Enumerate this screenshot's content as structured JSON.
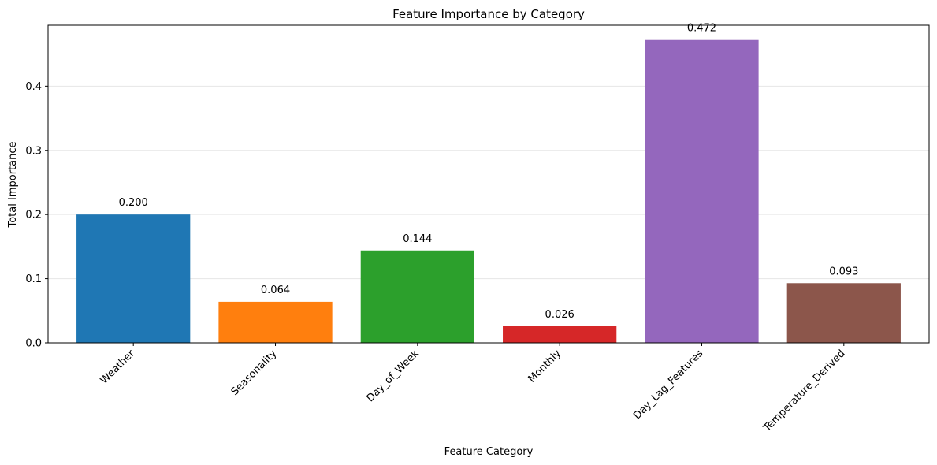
{
  "chart_data": {
    "type": "bar",
    "title": "Feature Importance by Category",
    "xlabel": "Feature Category",
    "ylabel": "Total Importance",
    "categories": [
      "Weather",
      "Seasonality",
      "Day_of_Week",
      "Monthly",
      "Day_Lag_Features",
      "Temperature_Derived"
    ],
    "values": [
      0.2,
      0.064,
      0.144,
      0.026,
      0.472,
      0.093
    ],
    "value_labels": [
      "0.200",
      "0.064",
      "0.144",
      "0.026",
      "0.472",
      "0.093"
    ],
    "colors": [
      "#1f77b4",
      "#ff7f0e",
      "#2ca02c",
      "#d62728",
      "#9467bd",
      "#8c564b"
    ],
    "ylim": [
      0,
      0.495
    ],
    "yticks": [
      0.0,
      0.1,
      0.2,
      0.3,
      0.4
    ],
    "ytick_labels": [
      "0.0",
      "0.1",
      "0.2",
      "0.3",
      "0.4"
    ],
    "grid": "y-axis horizontal, light",
    "legend": "none"
  }
}
